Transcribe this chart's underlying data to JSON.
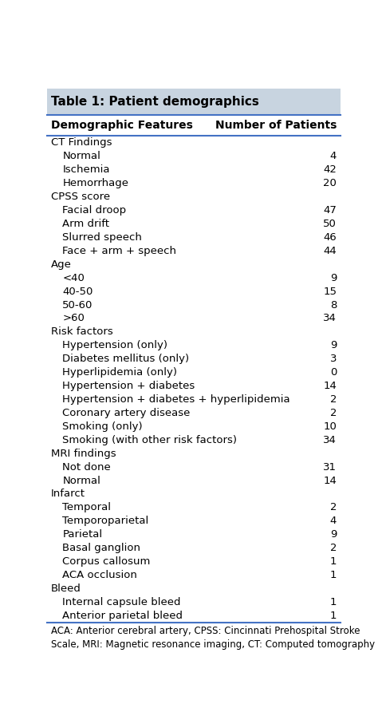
{
  "title": "Table 1: Patient demographics",
  "col1_header": "Demographic Features",
  "col2_header": "Number of Patients",
  "rows": [
    {
      "label": "CT Findings",
      "value": "",
      "indent": 0
    },
    {
      "label": "Normal",
      "value": "4",
      "indent": 1
    },
    {
      "label": "Ischemia",
      "value": "42",
      "indent": 1
    },
    {
      "label": "Hemorrhage",
      "value": "20",
      "indent": 1
    },
    {
      "label": "CPSS score",
      "value": "",
      "indent": 0
    },
    {
      "label": "Facial droop",
      "value": "47",
      "indent": 1
    },
    {
      "label": "Arm drift",
      "value": "50",
      "indent": 1
    },
    {
      "label": "Slurred speech",
      "value": "46",
      "indent": 1
    },
    {
      "label": "Face + arm + speech",
      "value": "44",
      "indent": 1
    },
    {
      "label": "Age",
      "value": "",
      "indent": 0
    },
    {
      "label": "<40",
      "value": "9",
      "indent": 1
    },
    {
      "label": "40-50",
      "value": "15",
      "indent": 1
    },
    {
      "label": "50-60",
      "value": "8",
      "indent": 1
    },
    {
      "label": ">60",
      "value": "34",
      "indent": 1
    },
    {
      "label": "Risk factors",
      "value": "",
      "indent": 0
    },
    {
      "label": "Hypertension (only)",
      "value": "9",
      "indent": 1
    },
    {
      "label": "Diabetes mellitus (only)",
      "value": "3",
      "indent": 1
    },
    {
      "label": "Hyperlipidemia (only)",
      "value": "0",
      "indent": 1
    },
    {
      "label": "Hypertension + diabetes",
      "value": "14",
      "indent": 1
    },
    {
      "label": "Hypertension + diabetes + hyperlipidemia",
      "value": "2",
      "indent": 1
    },
    {
      "label": "Coronary artery disease",
      "value": "2",
      "indent": 1
    },
    {
      "label": "Smoking (only)",
      "value": "10",
      "indent": 1
    },
    {
      "label": "Smoking (with other risk factors)",
      "value": "34",
      "indent": 1
    },
    {
      "label": "MRI findings",
      "value": "",
      "indent": 0
    },
    {
      "label": "Not done",
      "value": "31",
      "indent": 1
    },
    {
      "label": "Normal",
      "value": "14",
      "indent": 1
    },
    {
      "label": "Infarct",
      "value": "",
      "indent": 0
    },
    {
      "label": "Temporal",
      "value": "2",
      "indent": 1
    },
    {
      "label": "Temporoparietal",
      "value": "4",
      "indent": 1
    },
    {
      "label": "Parietal",
      "value": "9",
      "indent": 1
    },
    {
      "label": "Basal ganglion",
      "value": "2",
      "indent": 1
    },
    {
      "label": "Corpus callosum",
      "value": "1",
      "indent": 1
    },
    {
      "label": "ACA occlusion",
      "value": "1",
      "indent": 1
    },
    {
      "label": "Bleed",
      "value": "",
      "indent": 0
    },
    {
      "label": "Internal capsule bleed",
      "value": "1",
      "indent": 1
    },
    {
      "label": "Anterior parietal bleed",
      "value": "1",
      "indent": 1
    }
  ],
  "footnote": "ACA: Anterior cerebral artery, CPSS: Cincinnati Prehospital Stroke\nScale, MRI: Magnetic resonance imaging, CT: Computed tomography",
  "title_bg": "#c8d4e0",
  "line_color": "#4472c4",
  "title_fontsize": 11,
  "header_fontsize": 10,
  "body_fontsize": 9.5,
  "footnote_fontsize": 8.5
}
